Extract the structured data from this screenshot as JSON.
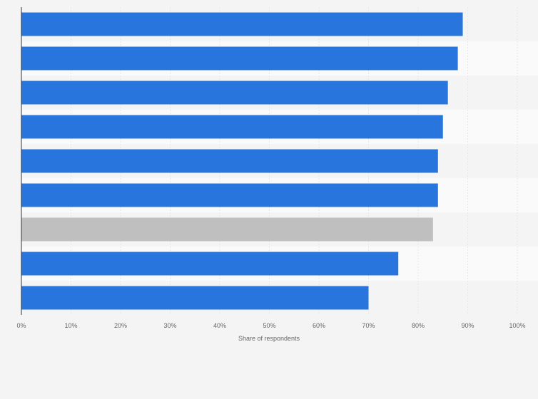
{
  "chart_data": {
    "type": "bar",
    "orientation": "horizontal",
    "title": "",
    "xlabel": "Share of respondents",
    "ylabel": "",
    "xlim": [
      0,
      100
    ],
    "x_ticks": [
      0,
      10,
      20,
      30,
      40,
      50,
      60,
      70,
      80,
      90,
      100
    ],
    "x_tick_labels": [
      "0%",
      "10%",
      "20%",
      "30%",
      "40%",
      "50%",
      "60%",
      "70%",
      "80%",
      "90%",
      "100%"
    ],
    "categories": [
      "",
      "",
      "",
      "",
      "",
      "",
      "",
      "",
      ""
    ],
    "values": [
      89,
      88,
      86,
      85,
      84,
      84,
      83,
      76,
      70
    ],
    "unit": "%",
    "grid": true,
    "legend": "none",
    "colors": {
      "bar": "#2876dd",
      "highlight_bar": "#bfbfbf",
      "band_light": "#fafafa",
      "band_dark": "#f4f4f4",
      "grid": "#e6e6e6",
      "axis": "#333333"
    },
    "highlight_index": 6
  }
}
